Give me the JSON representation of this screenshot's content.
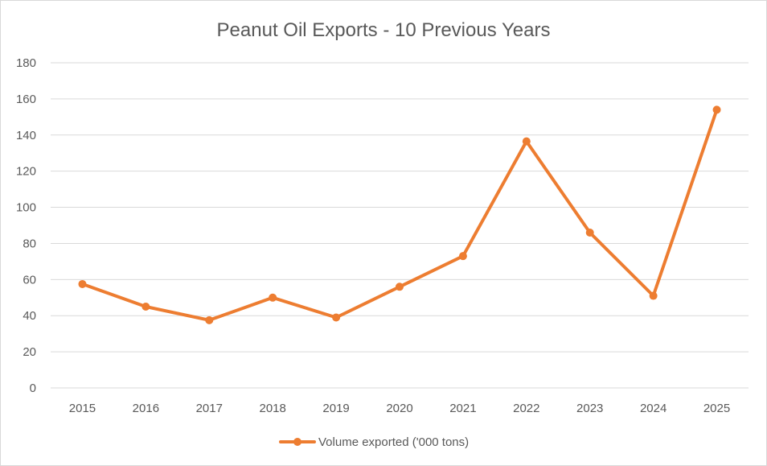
{
  "chart_data": {
    "type": "line",
    "title": "Peanut Oil Exports - 10 Previous Years",
    "xlabel": "",
    "ylabel": "",
    "categories": [
      "2015",
      "2016",
      "2017",
      "2018",
      "2019",
      "2020",
      "2021",
      "2022",
      "2023",
      "2024",
      "2025"
    ],
    "series": [
      {
        "name": "Volume exported ('000 tons)",
        "values": [
          57.5,
          45,
          37.5,
          50,
          39,
          56,
          73,
          136.5,
          86,
          51,
          154
        ],
        "color": "#ed7d31"
      }
    ],
    "ylim": [
      0,
      180
    ],
    "yticks": [
      "0",
      "20",
      "40",
      "60",
      "80",
      "100",
      "120",
      "140",
      "160",
      "180"
    ],
    "grid": true,
    "legend_position": "bottom"
  }
}
